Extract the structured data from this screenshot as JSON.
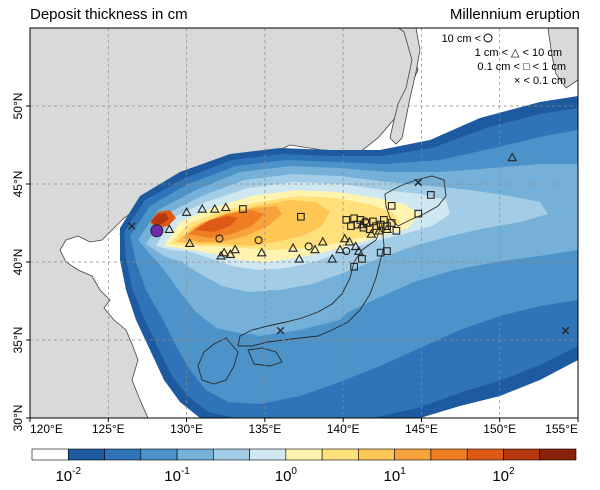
{
  "header": {
    "title_left": "Deposit thickness in cm",
    "title_right": "Millennium eruption"
  },
  "legend": {
    "items": [
      {
        "label": "10 cm <",
        "symbol": "circle"
      },
      {
        "label": "1 cm < △ < 10 cm",
        "symbol": "triangle"
      },
      {
        "label": "0.1 cm < □ < 1 cm",
        "symbol": "square"
      },
      {
        "label": "× < 0.1 cm",
        "symbol": "cross"
      }
    ]
  },
  "axes": {
    "lon_labels": [
      "120°E",
      "125°E",
      "130°E",
      "135°E",
      "140°E",
      "145°E",
      "150°E",
      "155°E"
    ],
    "lon_values": [
      120,
      125,
      130,
      135,
      140,
      145,
      150,
      155
    ],
    "lat_labels": [
      "30°N",
      "35°N",
      "40°N",
      "45°N",
      "50°N"
    ],
    "lat_values": [
      30,
      35,
      40,
      45,
      50
    ],
    "lon_range": [
      120,
      155
    ],
    "lat_range": [
      30,
      55
    ]
  },
  "colorbar": {
    "colors": [
      "#ffffff",
      "#1e5aa0",
      "#2f74b8",
      "#4b93c9",
      "#74b0d8",
      "#a3cde6",
      "#cfe7f1",
      "#fff3b0",
      "#ffe07a",
      "#ffc653",
      "#f9a23b",
      "#ef7e23",
      "#dd5a16",
      "#b7380e",
      "#8a2109"
    ],
    "tick_labels": [
      {
        "base": "10",
        "exp": "-2"
      },
      {
        "base": "10",
        "exp": "-1"
      },
      {
        "base": "10",
        "exp": "0"
      },
      {
        "base": "10",
        "exp": "1"
      },
      {
        "base": "10",
        "exp": "2"
      }
    ]
  },
  "colors": {
    "land": "#d9d9d9",
    "coast": "#444444",
    "grid": "#8a8a8a",
    "source": "#6e2aa8"
  },
  "observations": {
    "circles": [
      [
        128.1,
        42.0
      ],
      [
        132.1,
        41.5
      ],
      [
        134.6,
        41.4
      ],
      [
        137.8,
        41.0
      ],
      [
        140.2,
        40.7
      ],
      [
        141.4,
        42.6
      ]
    ],
    "triangles": [
      [
        130.0,
        43.2
      ],
      [
        131.0,
        43.4
      ],
      [
        131.8,
        43.4
      ],
      [
        132.5,
        43.5
      ],
      [
        128.9,
        42.1
      ],
      [
        130.2,
        41.2
      ],
      [
        132.2,
        40.4
      ],
      [
        132.4,
        40.6
      ],
      [
        133.1,
        40.8
      ],
      [
        132.8,
        40.5
      ],
      [
        134.8,
        40.6
      ],
      [
        136.8,
        40.9
      ],
      [
        137.2,
        40.2
      ],
      [
        138.2,
        40.8
      ],
      [
        138.7,
        41.3
      ],
      [
        139.3,
        40.2
      ],
      [
        139.8,
        40.8
      ],
      [
        140.1,
        41.5
      ],
      [
        140.4,
        41.3
      ],
      [
        140.8,
        41.0
      ],
      [
        141.0,
        40.7
      ],
      [
        141.2,
        42.4
      ],
      [
        141.8,
        41.8
      ],
      [
        142.3,
        42.0
      ],
      [
        142.8,
        42.1
      ],
      [
        150.8,
        46.7
      ]
    ],
    "squares": [
      [
        133.6,
        43.4
      ],
      [
        137.3,
        42.9
      ],
      [
        140.2,
        42.7
      ],
      [
        140.5,
        42.3
      ],
      [
        140.7,
        42.8
      ],
      [
        140.9,
        42.4
      ],
      [
        141.1,
        42.7
      ],
      [
        141.3,
        42.2
      ],
      [
        141.5,
        42.5
      ],
      [
        141.7,
        42.1
      ],
      [
        141.9,
        42.6
      ],
      [
        142.1,
        42.3
      ],
      [
        142.4,
        42.4
      ],
      [
        142.6,
        42.7
      ],
      [
        142.8,
        42.3
      ],
      [
        143.1,
        42.5
      ],
      [
        143.1,
        43.6
      ],
      [
        143.4,
        42.0
      ],
      [
        142.4,
        40.6
      ],
      [
        142.8,
        40.7
      ],
      [
        141.2,
        40.2
      ],
      [
        140.7,
        39.7
      ],
      [
        145.6,
        44.3
      ],
      [
        144.8,
        43.1
      ]
    ],
    "crosses": [
      [
        126.5,
        42.3
      ],
      [
        144.8,
        45.1
      ],
      [
        136.0,
        35.6
      ],
      [
        154.2,
        35.6
      ]
    ],
    "source_vent": [
      128.1,
      42.0
    ]
  }
}
